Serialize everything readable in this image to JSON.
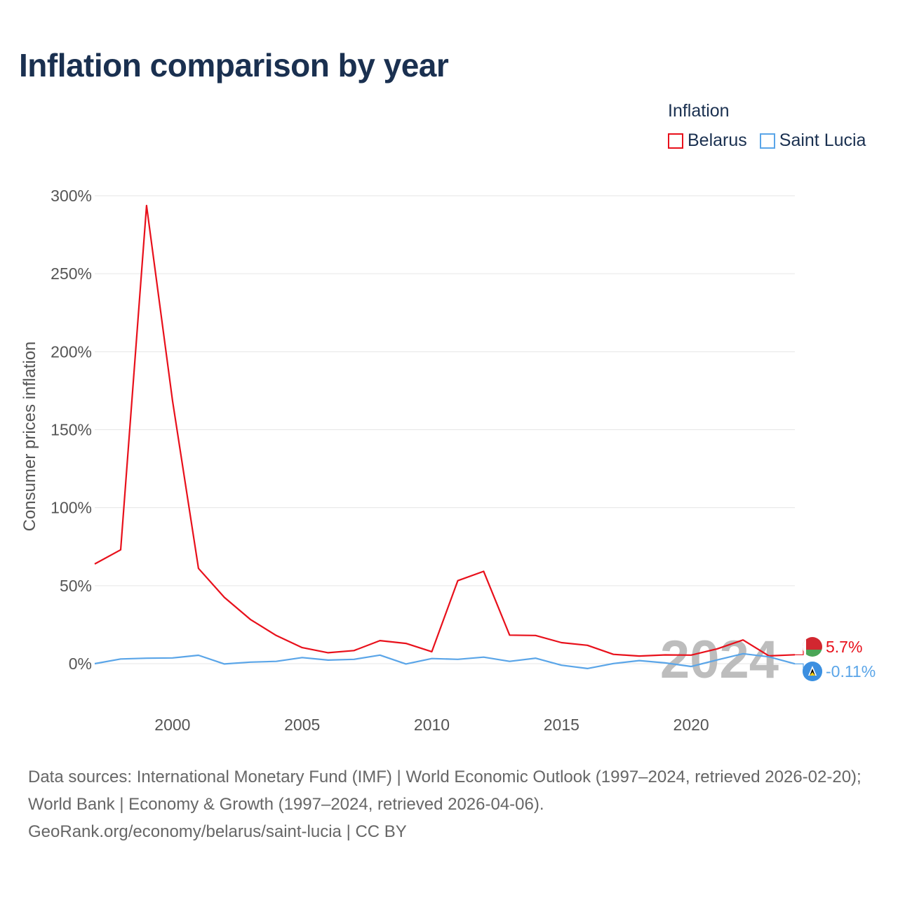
{
  "chart_data": {
    "type": "line",
    "title": "Inflation comparison by year",
    "ylabel": "Consumer prices inflation",
    "xlabel": "",
    "xlim": [
      1997,
      2024
    ],
    "ylim": [
      -15,
      300
    ],
    "x_ticks": [
      2000,
      2005,
      2010,
      2015,
      2020
    ],
    "x_tick_labels": [
      "2000",
      "2005",
      "2010",
      "2015",
      "2020"
    ],
    "y_ticks": [
      0,
      50,
      100,
      150,
      200,
      250,
      300
    ],
    "y_tick_labels": [
      "0%",
      "50%",
      "100%",
      "150%",
      "200%",
      "250%",
      "300%"
    ],
    "grid": true,
    "legend_title": "Inflation",
    "legend_position": "top-right",
    "current_year": "2024",
    "x": [
      1997,
      1998,
      1999,
      2000,
      2001,
      2002,
      2003,
      2004,
      2005,
      2006,
      2007,
      2008,
      2009,
      2010,
      2011,
      2012,
      2013,
      2014,
      2015,
      2016,
      2017,
      2018,
      2019,
      2020,
      2021,
      2022,
      2023,
      2024
    ],
    "series": [
      {
        "name": "Belarus",
        "color": "#e8101b",
        "end_label": "5.7%",
        "flag": "belarus-flag",
        "values": [
          63.9,
          73.0,
          293.7,
          168.6,
          61.1,
          42.5,
          28.4,
          18.1,
          10.3,
          7.0,
          8.4,
          14.8,
          13.0,
          7.7,
          53.2,
          59.2,
          18.3,
          18.1,
          13.5,
          11.8,
          6.0,
          4.9,
          5.6,
          5.5,
          9.5,
          15.2,
          5.0,
          5.7
        ]
      },
      {
        "name": "Saint Lucia",
        "color": "#5aa5e8",
        "end_label": "-0.11%",
        "flag": "saint-lucia-flag",
        "values": [
          0.0,
          3.0,
          3.5,
          3.7,
          5.4,
          -0.2,
          1.0,
          1.5,
          3.9,
          2.3,
          2.8,
          5.5,
          -0.2,
          3.3,
          2.8,
          4.2,
          1.5,
          3.5,
          -1.0,
          -3.1,
          0.1,
          2.0,
          0.5,
          -1.8,
          2.4,
          6.4,
          4.4,
          -0.11
        ]
      }
    ]
  },
  "sources": {
    "line1": "Data sources: International Monetary Fund (IMF) | World Economic Outlook (1997–2024, retrieved 2026-02-20); World Bank | Economy & Growth (1997–2024, retrieved 2026-04-06).",
    "line2": "GeoRank.org/economy/belarus/saint-lucia | CC BY"
  }
}
